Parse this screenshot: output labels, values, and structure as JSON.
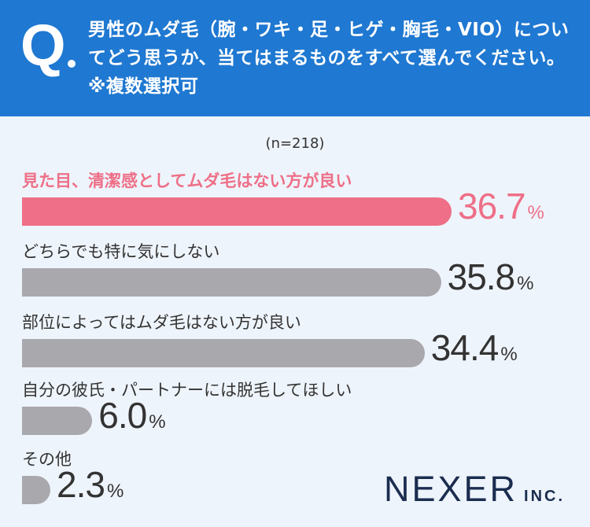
{
  "question": {
    "mark": "Q",
    "text": "男性のムダ毛（腕・ワキ・足・ヒゲ・胸毛・VIO）についてどう思うか、当てはまるものをすべて選んでください。※複数選択可"
  },
  "sample": "(n=218)",
  "unit": "%",
  "colors": {
    "header": "#1f78d1",
    "highlight": "#ee6f87",
    "bar": "#a8a8ad",
    "background": "#eef4fb"
  },
  "chart_data": {
    "type": "bar",
    "orientation": "horizontal",
    "categories": [
      "見た目、清潔感としてムダ毛はない方が良い",
      "どちらでも特に気にしない",
      "部位によってはムダ毛はない方が良い",
      "自分の彼氏・パートナーには脱毛してほしい",
      "その他"
    ],
    "values": [
      36.7,
      35.8,
      34.4,
      6.0,
      2.3
    ],
    "labels": [
      "36.7",
      "35.8",
      "34.4",
      "6.0",
      "2.3"
    ],
    "highlight_index": 0
  },
  "logo": {
    "main": "NEXER",
    "sub": "INC."
  }
}
